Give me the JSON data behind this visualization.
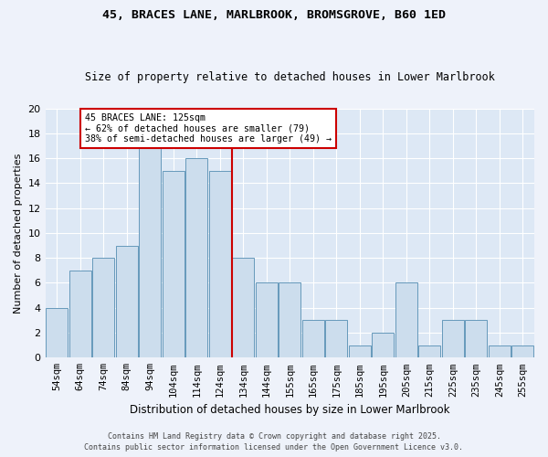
{
  "title": "45, BRACES LANE, MARLBROOK, BROMSGROVE, B60 1ED",
  "subtitle": "Size of property relative to detached houses in Lower Marlbrook",
  "xlabel": "Distribution of detached houses by size in Lower Marlbrook",
  "ylabel": "Number of detached properties",
  "bar_color": "#ccdded",
  "bar_edgecolor": "#6699bb",
  "background_color": "#dde8f5",
  "grid_color": "#ffffff",
  "categories": [
    "54sqm",
    "64sqm",
    "74sqm",
    "84sqm",
    "94sqm",
    "104sqm",
    "114sqm",
    "124sqm",
    "134sqm",
    "144sqm",
    "155sqm",
    "165sqm",
    "175sqm",
    "185sqm",
    "195sqm",
    "205sqm",
    "215sqm",
    "225sqm",
    "235sqm",
    "245sqm",
    "255sqm"
  ],
  "values": [
    4,
    7,
    8,
    9,
    17,
    15,
    16,
    15,
    8,
    6,
    6,
    3,
    3,
    1,
    2,
    6,
    1,
    3,
    3,
    1,
    1
  ],
  "ylim": [
    0,
    20
  ],
  "yticks": [
    0,
    2,
    4,
    6,
    8,
    10,
    12,
    14,
    16,
    18,
    20
  ],
  "vline_pos": 7.5,
  "annotation_line1": "45 BRACES LANE: 125sqm",
  "annotation_line2": "← 62% of detached houses are smaller (79)",
  "annotation_line3": "38% of semi-detached houses are larger (49) →",
  "annotation_box_color": "#ffffff",
  "annotation_box_edgecolor": "#cc0000",
  "vline_color": "#cc0000",
  "footer1": "Contains HM Land Registry data © Crown copyright and database right 2025.",
  "footer2": "Contains public sector information licensed under the Open Government Licence v3.0.",
  "fig_bg": "#eef2fa"
}
